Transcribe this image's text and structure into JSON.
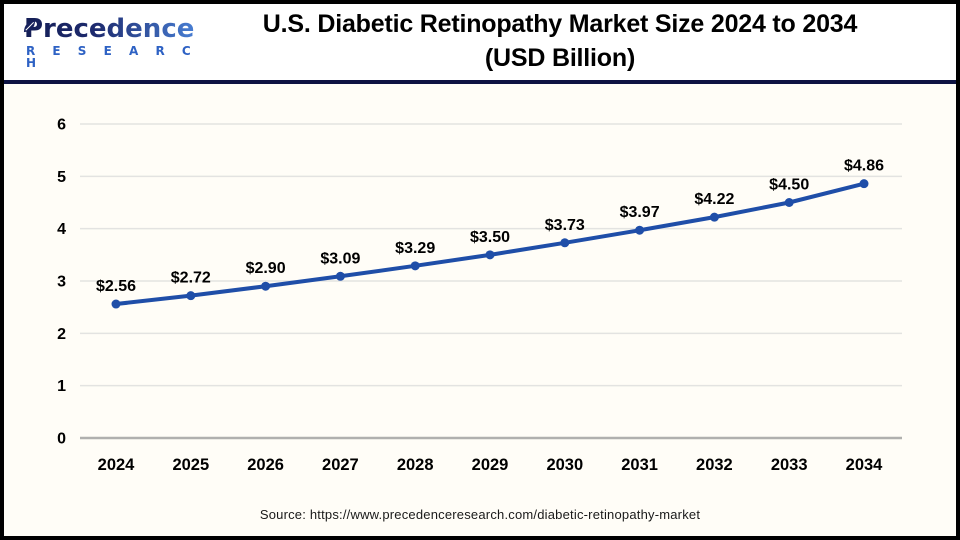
{
  "header": {
    "logo": {
      "name": "Precedence",
      "subtitle": "R E S E A R C H"
    },
    "title_line1": "U.S. Diabetic Retinopathy Market Size 2024 to 2034",
    "title_line2": "(USD Billion)"
  },
  "chart_data": {
    "type": "line",
    "title": "U.S. Diabetic Retinopathy Market Size 2024 to 2034 (USD Billion)",
    "categories": [
      "2024",
      "2025",
      "2026",
      "2027",
      "2028",
      "2029",
      "2030",
      "2031",
      "2032",
      "2033",
      "2034"
    ],
    "values": [
      2.56,
      2.72,
      2.9,
      3.09,
      3.29,
      3.5,
      3.73,
      3.97,
      4.22,
      4.5,
      4.86
    ],
    "data_labels": [
      "$2.56",
      "$2.72",
      "$2.90",
      "$3.09",
      "$3.29",
      "$3.50",
      "$3.73",
      "$3.97",
      "$4.22",
      "$4.50",
      "$4.86"
    ],
    "xlabel": "",
    "ylabel": "",
    "ylim": [
      0,
      6
    ],
    "yticks": [
      0,
      1,
      2,
      3,
      4,
      5,
      6
    ],
    "grid": true,
    "legend": "none",
    "line_color": "#1f4ea8",
    "marker": "circle"
  },
  "footer": {
    "source": "Source: https://www.precedenceresearch.com/diabetic-retinopathy-market"
  },
  "colors": {
    "border": "#000000",
    "divider_navy": "#0e1342",
    "gridline": "#e3e3e1",
    "axis_line": "#b0b0ae",
    "label_text": "#000000",
    "chart_bg": "#fffdf7",
    "logo_dark": "#1d2a6e",
    "logo_light": "#4a82d8",
    "logo_research": "#2e62c4"
  }
}
